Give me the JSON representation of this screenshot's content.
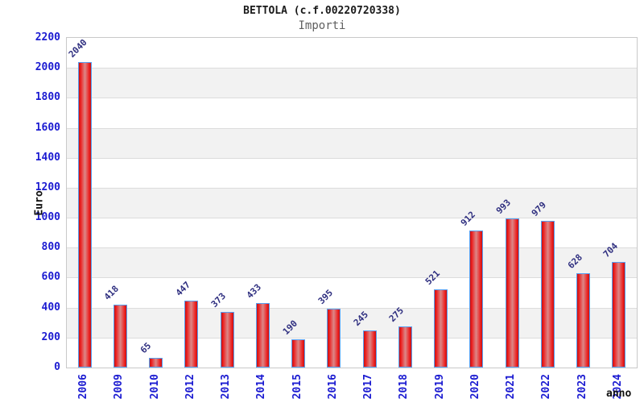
{
  "header": {
    "title": "BETTOLA (c.f.00220720338)",
    "subtitle": "Importi"
  },
  "chart_data": {
    "type": "bar",
    "title": "BETTOLA (c.f.00220720338)",
    "subtitle": "Importi",
    "categories": [
      "2006",
      "2009",
      "2010",
      "2012",
      "2013",
      "2014",
      "2015",
      "2016",
      "2017",
      "2018",
      "2019",
      "2020",
      "2021",
      "2022",
      "2023",
      "2024"
    ],
    "values": [
      2040,
      418,
      65,
      447,
      373,
      433,
      190,
      395,
      245,
      275,
      521,
      912,
      993,
      979,
      628,
      704
    ],
    "xlabel": "anno",
    "ylabel": "Euro",
    "ylim": [
      0,
      2200
    ],
    "ytick_interval": 200,
    "ytick_labels": [
      "0",
      "200",
      "400",
      "600",
      "800",
      "1000",
      "1200",
      "1400",
      "1600",
      "1800",
      "2000",
      "2200"
    ],
    "grid": true,
    "legend": "none",
    "band_colors": [
      "#ffffff",
      "#f2f2f2"
    ],
    "colors": {
      "bar_fill": "#ec1f1f",
      "bar_highlight": "#dc8888",
      "bar_border": "#57a0f2",
      "tick_label": "#1b1bd1",
      "value_label": "#2f2f80",
      "gridline": "#dcdcdc",
      "plot_border": "#c9c9c9",
      "title": "#1a1a1a",
      "subtitle": "#5f5f5f",
      "axis_title": "#111111"
    }
  }
}
